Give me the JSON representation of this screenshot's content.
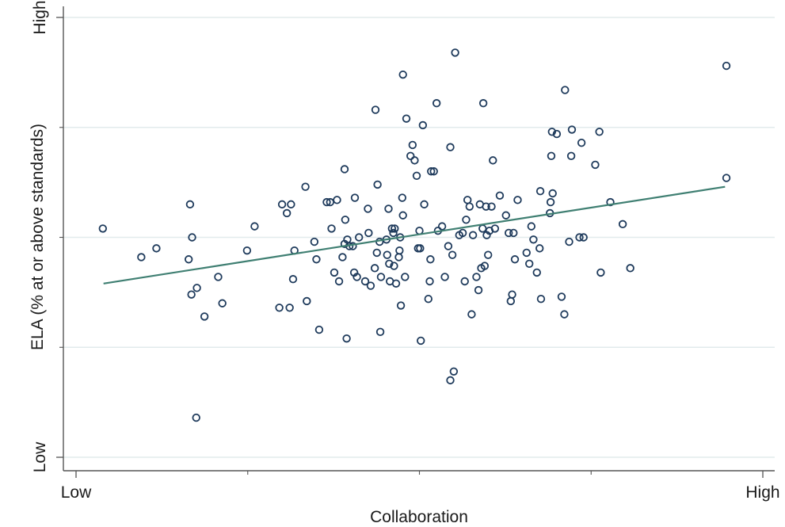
{
  "chart_data": {
    "type": "scatter",
    "xlabel": "Collaboration",
    "ylabel": "ELA (% at or above standards)",
    "x_tick_labels": [
      {
        "value": 0,
        "label": "Low"
      },
      {
        "value": 10,
        "label": "High"
      }
    ],
    "y_tick_labels": [
      {
        "value": 0,
        "label": "Low"
      },
      {
        "value": 10,
        "label": "High"
      }
    ],
    "xlim": [
      -0.2,
      10.15
    ],
    "ylim": [
      -0.3,
      10.4
    ],
    "x_minor_ticks": [
      2.5,
      5,
      7.5
    ],
    "y_minor_ticks": [
      2.5,
      5,
      7.5
    ],
    "grid": true,
    "colors": {
      "marker": "#1f3b5c",
      "fit_line": "#3f7f72",
      "grid": "#e2ebec",
      "axis": "#555555"
    },
    "fit_line": {
      "x": [
        0.4,
        9.45
      ],
      "y": [
        3.95,
        6.15
      ]
    },
    "points": [
      {
        "x": 0.39,
        "y": 5.2
      },
      {
        "x": 0.95,
        "y": 4.55
      },
      {
        "x": 1.17,
        "y": 4.75
      },
      {
        "x": 1.64,
        "y": 4.5
      },
      {
        "x": 1.66,
        "y": 5.75
      },
      {
        "x": 1.69,
        "y": 5.0
      },
      {
        "x": 1.68,
        "y": 3.7
      },
      {
        "x": 1.76,
        "y": 3.85
      },
      {
        "x": 1.87,
        "y": 3.2
      },
      {
        "x": 1.75,
        "y": 0.9
      },
      {
        "x": 2.07,
        "y": 4.1
      },
      {
        "x": 2.13,
        "y": 3.5
      },
      {
        "x": 2.49,
        "y": 4.7
      },
      {
        "x": 2.6,
        "y": 5.25
      },
      {
        "x": 2.96,
        "y": 3.4
      },
      {
        "x": 3.11,
        "y": 3.4
      },
      {
        "x": 3.0,
        "y": 5.75
      },
      {
        "x": 3.07,
        "y": 5.55
      },
      {
        "x": 3.13,
        "y": 5.75
      },
      {
        "x": 3.16,
        "y": 4.05
      },
      {
        "x": 3.18,
        "y": 4.7
      },
      {
        "x": 3.34,
        "y": 6.15
      },
      {
        "x": 3.36,
        "y": 3.55
      },
      {
        "x": 3.47,
        "y": 4.9
      },
      {
        "x": 3.5,
        "y": 4.5
      },
      {
        "x": 3.54,
        "y": 2.9
      },
      {
        "x": 3.65,
        "y": 5.8
      },
      {
        "x": 3.7,
        "y": 5.8
      },
      {
        "x": 3.76,
        "y": 4.2
      },
      {
        "x": 3.72,
        "y": 5.2
      },
      {
        "x": 3.8,
        "y": 5.85
      },
      {
        "x": 3.83,
        "y": 4.0
      },
      {
        "x": 3.88,
        "y": 4.55
      },
      {
        "x": 3.91,
        "y": 4.85
      },
      {
        "x": 3.92,
        "y": 5.4
      },
      {
        "x": 3.94,
        "y": 2.7
      },
      {
        "x": 3.95,
        "y": 4.95
      },
      {
        "x": 3.98,
        "y": 4.8
      },
      {
        "x": 4.03,
        "y": 4.8
      },
      {
        "x": 4.06,
        "y": 5.9
      },
      {
        "x": 3.91,
        "y": 6.55
      },
      {
        "x": 4.05,
        "y": 4.2
      },
      {
        "x": 4.09,
        "y": 4.1
      },
      {
        "x": 4.12,
        "y": 5.0
      },
      {
        "x": 4.21,
        "y": 4.0
      },
      {
        "x": 4.26,
        "y": 5.1
      },
      {
        "x": 4.25,
        "y": 5.65
      },
      {
        "x": 4.29,
        "y": 3.9
      },
      {
        "x": 4.35,
        "y": 4.3
      },
      {
        "x": 4.38,
        "y": 4.65
      },
      {
        "x": 4.39,
        "y": 6.2
      },
      {
        "x": 4.42,
        "y": 4.9
      },
      {
        "x": 4.43,
        "y": 2.85
      },
      {
        "x": 4.44,
        "y": 4.1
      },
      {
        "x": 4.36,
        "y": 7.9
      },
      {
        "x": 4.52,
        "y": 4.95
      },
      {
        "x": 4.53,
        "y": 4.6
      },
      {
        "x": 4.55,
        "y": 5.65
      },
      {
        "x": 4.56,
        "y": 4.4
      },
      {
        "x": 4.57,
        "y": 4.0
      },
      {
        "x": 4.6,
        "y": 5.2
      },
      {
        "x": 4.62,
        "y": 5.1
      },
      {
        "x": 4.63,
        "y": 4.35
      },
      {
        "x": 4.64,
        "y": 5.2
      },
      {
        "x": 4.66,
        "y": 3.95
      },
      {
        "x": 4.7,
        "y": 4.55
      },
      {
        "x": 4.71,
        "y": 4.7
      },
      {
        "x": 4.72,
        "y": 5.0
      },
      {
        "x": 4.73,
        "y": 3.45
      },
      {
        "x": 4.75,
        "y": 5.9
      },
      {
        "x": 4.76,
        "y": 5.5
      },
      {
        "x": 4.76,
        "y": 8.7
      },
      {
        "x": 4.79,
        "y": 4.1
      },
      {
        "x": 4.81,
        "y": 7.7
      },
      {
        "x": 4.87,
        "y": 6.85
      },
      {
        "x": 4.9,
        "y": 7.1
      },
      {
        "x": 4.93,
        "y": 6.75
      },
      {
        "x": 4.96,
        "y": 6.4
      },
      {
        "x": 4.98,
        "y": 4.75
      },
      {
        "x": 5.0,
        "y": 5.15
      },
      {
        "x": 5.01,
        "y": 4.75
      },
      {
        "x": 5.02,
        "y": 2.65
      },
      {
        "x": 5.05,
        "y": 7.55
      },
      {
        "x": 5.07,
        "y": 5.75
      },
      {
        "x": 5.13,
        "y": 3.6
      },
      {
        "x": 5.15,
        "y": 4.0
      },
      {
        "x": 5.16,
        "y": 4.5
      },
      {
        "x": 5.17,
        "y": 6.5
      },
      {
        "x": 5.21,
        "y": 6.5
      },
      {
        "x": 5.25,
        "y": 8.05
      },
      {
        "x": 5.27,
        "y": 5.15
      },
      {
        "x": 5.33,
        "y": 5.25
      },
      {
        "x": 5.37,
        "y": 4.1
      },
      {
        "x": 5.42,
        "y": 4.8
      },
      {
        "x": 5.45,
        "y": 7.05
      },
      {
        "x": 5.48,
        "y": 4.6
      },
      {
        "x": 5.5,
        "y": 1.95
      },
      {
        "x": 5.52,
        "y": 9.2
      },
      {
        "x": 5.45,
        "y": 1.75
      },
      {
        "x": 5.58,
        "y": 5.05
      },
      {
        "x": 5.63,
        "y": 5.1
      },
      {
        "x": 5.66,
        "y": 4.0
      },
      {
        "x": 5.68,
        "y": 5.4
      },
      {
        "x": 5.7,
        "y": 5.85
      },
      {
        "x": 5.73,
        "y": 5.7
      },
      {
        "x": 5.76,
        "y": 3.25
      },
      {
        "x": 5.78,
        "y": 5.05
      },
      {
        "x": 5.83,
        "y": 4.1
      },
      {
        "x": 5.86,
        "y": 3.8
      },
      {
        "x": 5.88,
        "y": 5.75
      },
      {
        "x": 5.9,
        "y": 4.3
      },
      {
        "x": 5.92,
        "y": 5.2
      },
      {
        "x": 5.93,
        "y": 8.05
      },
      {
        "x": 5.95,
        "y": 4.35
      },
      {
        "x": 5.97,
        "y": 5.7
      },
      {
        "x": 5.98,
        "y": 5.05
      },
      {
        "x": 6.0,
        "y": 4.6
      },
      {
        "x": 6.02,
        "y": 5.15
      },
      {
        "x": 6.05,
        "y": 5.7
      },
      {
        "x": 6.07,
        "y": 6.75
      },
      {
        "x": 6.1,
        "y": 5.2
      },
      {
        "x": 6.17,
        "y": 5.95
      },
      {
        "x": 6.26,
        "y": 5.5
      },
      {
        "x": 6.3,
        "y": 5.1
      },
      {
        "x": 6.33,
        "y": 3.55
      },
      {
        "x": 6.35,
        "y": 3.7
      },
      {
        "x": 6.37,
        "y": 5.1
      },
      {
        "x": 6.39,
        "y": 4.5
      },
      {
        "x": 6.43,
        "y": 5.85
      },
      {
        "x": 6.56,
        "y": 4.65
      },
      {
        "x": 6.6,
        "y": 4.4
      },
      {
        "x": 6.63,
        "y": 5.25
      },
      {
        "x": 6.66,
        "y": 4.95
      },
      {
        "x": 6.71,
        "y": 4.2
      },
      {
        "x": 6.75,
        "y": 4.75
      },
      {
        "x": 6.76,
        "y": 6.05
      },
      {
        "x": 6.77,
        "y": 3.6
      },
      {
        "x": 6.9,
        "y": 5.55
      },
      {
        "x": 6.91,
        "y": 5.8
      },
      {
        "x": 6.92,
        "y": 6.85
      },
      {
        "x": 6.93,
        "y": 7.4
      },
      {
        "x": 6.94,
        "y": 6.0
      },
      {
        "x": 7.0,
        "y": 7.35
      },
      {
        "x": 7.07,
        "y": 3.65
      },
      {
        "x": 7.11,
        "y": 3.25
      },
      {
        "x": 7.12,
        "y": 8.35
      },
      {
        "x": 7.18,
        "y": 4.9
      },
      {
        "x": 7.21,
        "y": 6.85
      },
      {
        "x": 7.22,
        "y": 7.45
      },
      {
        "x": 7.36,
        "y": 7.15
      },
      {
        "x": 7.33,
        "y": 5.0
      },
      {
        "x": 7.39,
        "y": 5.0
      },
      {
        "x": 7.56,
        "y": 6.65
      },
      {
        "x": 7.62,
        "y": 7.4
      },
      {
        "x": 7.64,
        "y": 4.2
      },
      {
        "x": 7.78,
        "y": 5.8
      },
      {
        "x": 7.96,
        "y": 5.3
      },
      {
        "x": 8.07,
        "y": 4.3
      },
      {
        "x": 9.47,
        "y": 8.9
      },
      {
        "x": 9.47,
        "y": 6.35
      }
    ]
  }
}
